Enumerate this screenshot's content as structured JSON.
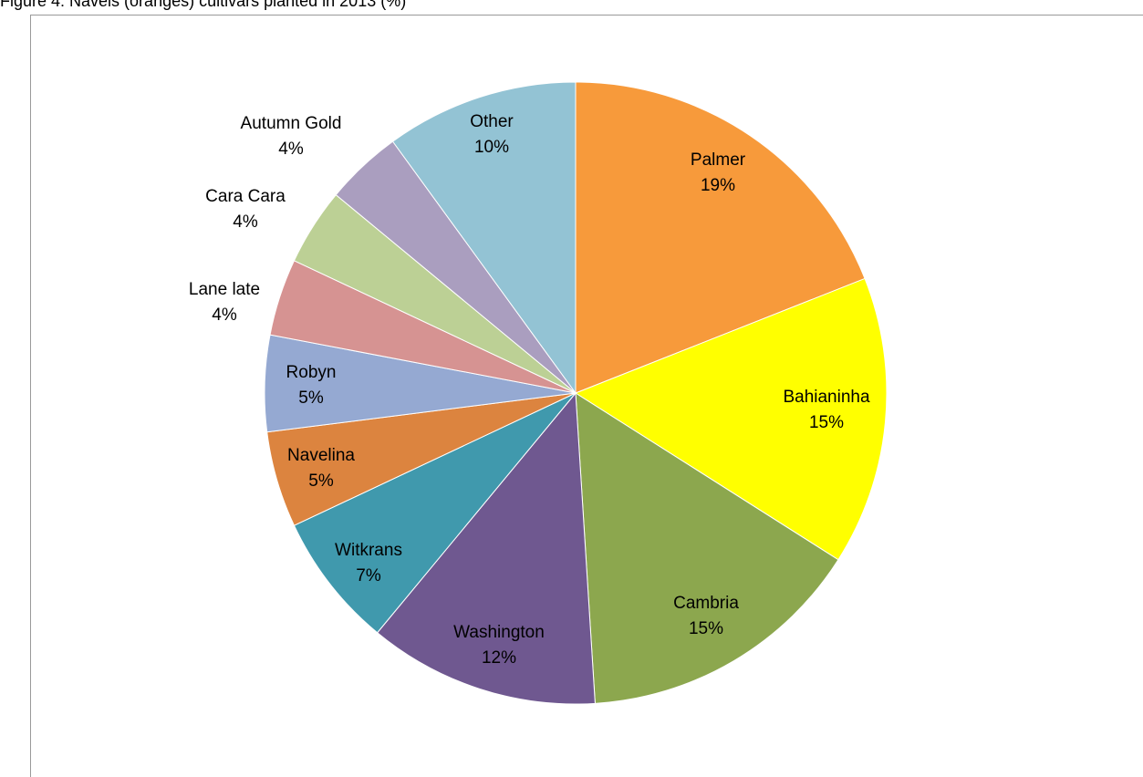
{
  "caption": "Figure 4: Navels (oranges) cultivars planted in 2013 (%)",
  "chart_data": {
    "type": "pie",
    "title": "",
    "slices": [
      {
        "label": "Palmer",
        "value": 19,
        "percent_label": "19%",
        "color": "#f79a3b"
      },
      {
        "label": "Bahianinha",
        "value": 15,
        "percent_label": "15%",
        "color": "#ffff00"
      },
      {
        "label": "Cambria",
        "value": 15,
        "percent_label": "15%",
        "color": "#8ca74e"
      },
      {
        "label": "Washington",
        "value": 12,
        "percent_label": "12%",
        "color": "#6f5890"
      },
      {
        "label": "Witkrans",
        "value": 7,
        "percent_label": "7%",
        "color": "#4099ad"
      },
      {
        "label": "Navelina",
        "value": 5,
        "percent_label": "5%",
        "color": "#dc843f"
      },
      {
        "label": "Robyn",
        "value": 5,
        "percent_label": "5%",
        "color": "#95a9d2"
      },
      {
        "label": "Lane late",
        "value": 4,
        "percent_label": "4%",
        "color": "#d69392"
      },
      {
        "label": "Cara Cara",
        "value": 4,
        "percent_label": "4%",
        "color": "#bcd095"
      },
      {
        "label": "Autumn Gold",
        "value": 4,
        "percent_label": "4%",
        "color": "#aa9ebf"
      },
      {
        "label": "Other",
        "value": 10,
        "percent_label": "10%",
        "color": "#93c3d4"
      }
    ]
  }
}
